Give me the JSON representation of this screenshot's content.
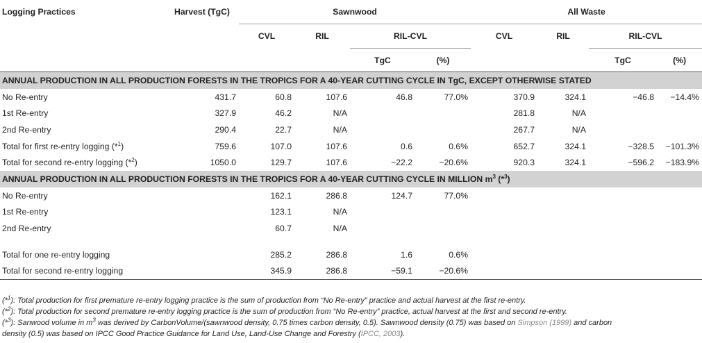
{
  "header": {
    "logging_practices": "Logging Practices",
    "harvest": "Harvest (TgC)",
    "sawnwood": "Sawnwood",
    "all_waste": "All Waste",
    "cvl": "CVL",
    "ril": "RIL",
    "ril_cvl": "RIL-CVL",
    "tgc": "TgC",
    "pct": "(%)"
  },
  "section1": {
    "title": "ANNUAL PRODUCTION IN ALL PRODUCTION FORESTS IN THE TROPICS FOR A 40-YEAR CUTTING CYCLE IN TgC, EXCEPT OTHERWISE STATED",
    "rows": [
      {
        "label": "No Re-entry",
        "label_sup": "",
        "label_end": "",
        "harvest": "431.7",
        "s_cvl": "60.8",
        "s_ril": "107.6",
        "s_tgc": "46.8",
        "s_pct": "77.0%",
        "w_cvl": "370.9",
        "w_ril": "324.1",
        "w_tgc": "−46.8",
        "w_pct": "−14.4%"
      },
      {
        "label": "1st Re-entry",
        "label_sup": "",
        "label_end": "",
        "harvest": "327.9",
        "s_cvl": "46.2",
        "s_ril": "N/A",
        "s_tgc": "",
        "s_pct": "",
        "w_cvl": "281.8",
        "w_ril": "N/A",
        "w_tgc": "",
        "w_pct": ""
      },
      {
        "label": "2nd Re-entry",
        "label_sup": "",
        "label_end": "",
        "harvest": "290.4",
        "s_cvl": "22.7",
        "s_ril": "N/A",
        "s_tgc": "",
        "s_pct": "",
        "w_cvl": "267.7",
        "w_ril": "N/A",
        "w_tgc": "",
        "w_pct": ""
      },
      {
        "label": "Total for first re-entry logging (*",
        "label_sup": "1",
        "label_end": ")",
        "harvest": "759.6",
        "s_cvl": "107.0",
        "s_ril": "107.6",
        "s_tgc": "0.6",
        "s_pct": "0.6%",
        "w_cvl": "652.7",
        "w_ril": "324.1",
        "w_tgc": "−328.5",
        "w_pct": "−101.3%"
      },
      {
        "label": "Total for second re-entry logging (*",
        "label_sup": "2",
        "label_end": ")",
        "harvest": "1050.0",
        "s_cvl": "129.7",
        "s_ril": "107.6",
        "s_tgc": "−22.2",
        "s_pct": "−20.6%",
        "w_cvl": "920.3",
        "w_ril": "324.1",
        "w_tgc": "−596.2",
        "w_pct": "−183.9%"
      }
    ]
  },
  "section2": {
    "title": "ANNUAL PRODUCTION IN ALL PRODUCTION FORESTS IN THE TROPICS FOR A 40-YEAR CUTTING CYCLE IN MILLION m",
    "title_sup": "3",
    "title_end": " (*",
    "title_sup2": "3",
    "title_end2": ")",
    "rows": [
      {
        "label": "No Re-entry",
        "s_cvl": "162.1",
        "s_ril": "286.8",
        "s_tgc": "124.7",
        "s_pct": "77.0%"
      },
      {
        "label": "1st Re-entry",
        "s_cvl": "123.1",
        "s_ril": "N/A",
        "s_tgc": "",
        "s_pct": ""
      },
      {
        "label": "2nd Re-entry",
        "s_cvl": "60.7",
        "s_ril": "N/A",
        "s_tgc": "",
        "s_pct": ""
      }
    ],
    "totals": [
      {
        "label": "Total for one re-entry logging",
        "s_cvl": "285.2",
        "s_ril": "286.8",
        "s_tgc": "1.6",
        "s_pct": "0.6%"
      },
      {
        "label": "Total for second re-entry logging",
        "s_cvl": "345.9",
        "s_ril": "286.8",
        "s_tgc": "−59.1",
        "s_pct": "−20.6%"
      }
    ]
  },
  "notes": {
    "n1_open": "(*",
    "n1_sup": "1",
    "n1_text": "): Total production for first premature re-entry logging practice is the sum of production from “No Re-entry” practice and actual harvest at the first re-entry.",
    "n2_open": "(*",
    "n2_sup": "2",
    "n2_text": "): Total production for second premature re-entry logging practice is the sum of production from “No Re-entry” practice, actual harvest at the first and second re-entry.",
    "n3_open": "(*",
    "n3_sup": "3",
    "n3_text_a": "): Sanwood volume in m",
    "n3_sup2": "3",
    "n3_text_b": " was derived by CarbonVolume/(sawnwood density, 0.75 times carbon density, 0.5). Sawnwood density (0.75) was based on ",
    "n3_link1": "Simpson (1999)",
    "n3_text_c": " and carbon",
    "n3_line2_a": "density (0.5) was based on IPCC Good Practice Guidance for Land Use, Land-Use Change and Forestry (",
    "n3_link2": "IPCC, 2003",
    "n3_line2_b": ")."
  }
}
